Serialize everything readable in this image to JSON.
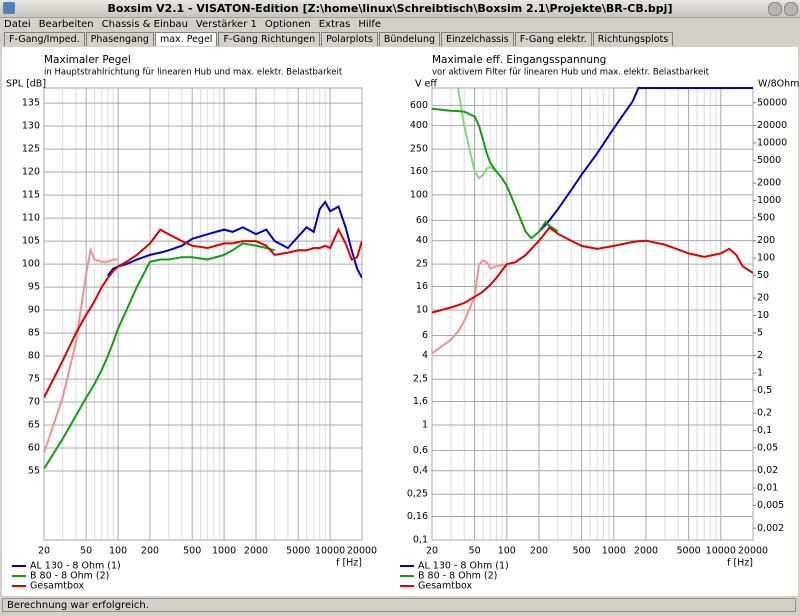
{
  "window": {
    "title": "Boxsim V2.1 - VISATON-Edition [Z:\\home\\linux\\Schreibtisch\\Boxsim 2.1\\Projekte\\BR-CB.bpj]"
  },
  "menu": [
    "Datei",
    "Bearbeiten",
    "Chassis & Einbau",
    "Verstärker 1",
    "Optionen",
    "Extras",
    "Hilfe"
  ],
  "tabs": [
    "F-Gang/Imped.",
    "Phasengang",
    "max. Pegel",
    "F-Gang Richtungen",
    "Polarplots",
    "Bündelung",
    "Einzelchassis",
    "F-Gang elektr.",
    "Richtungsplots"
  ],
  "active_tab": "max. Pegel",
  "status": "Berechnung war erfolgreich.",
  "chart_data": [
    {
      "type": "line",
      "title": "Maximaler Pegel",
      "subtitle": "in Hauptstrahlrichtung für linearen Hub und max. elektr. Belastbarkeit",
      "y_label": "SPL [dB]",
      "x_label": "f [Hz]",
      "xscale": "log",
      "xlim": [
        20,
        20000
      ],
      "xticks": [
        20,
        50,
        100,
        200,
        500,
        1000,
        2000,
        5000,
        10000,
        20000
      ],
      "x_minor_ticks": [
        30,
        40,
        60,
        70,
        80,
        90,
        300,
        400,
        600,
        700,
        800,
        900,
        3000,
        4000,
        6000,
        7000,
        8000,
        9000
      ],
      "ylim": [
        40,
        138.3
      ],
      "yticks": [
        55,
        60,
        65,
        70,
        75,
        80,
        85,
        90,
        95,
        100,
        105,
        110,
        115,
        120,
        125,
        130,
        135
      ],
      "grid": true,
      "legend": "bottom-left",
      "x": [
        20,
        30,
        40,
        50,
        55,
        60,
        70,
        80,
        90,
        100,
        120,
        150,
        200,
        250,
        300,
        400,
        500,
        700,
        1000,
        1200,
        1500,
        2000,
        2500,
        3000,
        4000,
        5000,
        6000,
        7000,
        8000,
        9000,
        10000,
        12000,
        14000,
        16000,
        18000,
        20000
      ],
      "series": [
        {
          "color": "#f09090",
          "values": [
            59,
            71,
            83,
            98,
            103,
            101,
            100.5,
            100.5,
            101,
            101,
            null,
            null,
            null,
            null,
            null,
            null,
            null,
            null,
            null,
            null,
            null,
            null,
            null,
            null,
            null,
            null,
            null,
            null,
            null,
            null,
            null,
            null,
            null,
            null,
            null,
            null
          ]
        },
        {
          "name": "AL 130 - 8 Ohm (1)",
          "color": "#0000c8",
          "values": [
            null,
            null,
            null,
            null,
            null,
            null,
            null,
            97.5,
            99,
            99.5,
            100,
            101,
            102,
            102.5,
            103,
            104,
            105.5,
            106.5,
            107.5,
            107,
            108,
            106.5,
            107.5,
            105,
            103.5,
            106,
            108,
            107,
            112,
            113.5,
            111.5,
            112.5,
            108,
            103,
            99,
            97
          ]
        },
        {
          "name": "B 80 - 8 Ohm (2)",
          "color": "#10a010",
          "values": [
            55.5,
            62,
            67,
            71,
            72.5,
            74,
            77,
            80,
            83,
            86,
            90,
            95,
            100.5,
            101,
            101,
            101.5,
            101.5,
            101,
            102,
            103,
            104.5,
            104,
            103.5,
            103,
            null,
            null,
            null,
            null,
            null,
            null,
            null,
            null,
            null,
            null,
            null,
            null
          ]
        },
        {
          "name": "Gesamtbox",
          "color": "#e00000",
          "values": [
            71,
            79,
            85,
            89,
            90.5,
            92,
            95,
            97,
            98.5,
            99.5,
            100.5,
            102,
            104.5,
            107.5,
            106.5,
            105,
            104,
            103.5,
            104.5,
            104.5,
            105,
            105,
            104,
            102,
            102.5,
            103,
            103,
            103.5,
            103.5,
            104,
            103.5,
            107.5,
            104.5,
            101,
            101.5,
            105
          ]
        }
      ]
    },
    {
      "type": "line",
      "title": "Maximale eff. Eingangsspannung",
      "subtitle": "vor aktivem Filter für linearen Hub und max. elektr. Belastbarkeit",
      "y_label": "V eff",
      "y2_label": "W/8Ohm",
      "x_label": "f [Hz]",
      "xscale": "log",
      "xlim": [
        20,
        20000
      ],
      "xticks": [
        20,
        50,
        100,
        200,
        500,
        1000,
        2000,
        5000,
        10000,
        20000
      ],
      "x_minor_ticks": [
        30,
        40,
        60,
        70,
        80,
        90,
        300,
        400,
        600,
        700,
        800,
        900,
        3000,
        4000,
        6000,
        7000,
        8000,
        9000
      ],
      "yscale": "log",
      "ylim": [
        0.1,
        850
      ],
      "yticks": [
        {
          "value": 0.1,
          "label": "0,1"
        },
        {
          "value": 0.16,
          "label": "0,16"
        },
        {
          "value": 0.25,
          "label": "0,25"
        },
        {
          "value": 0.4,
          "label": "0,4"
        },
        {
          "value": 0.6,
          "label": "0,6"
        },
        1,
        {
          "value": 1.6,
          "label": "1,6"
        },
        {
          "value": 2.5,
          "label": "2,5"
        },
        4,
        6,
        10,
        16,
        25,
        40,
        60,
        100,
        160,
        250,
        400,
        600
      ],
      "y2scale": "log",
      "y2lim": [
        0.00125,
        90312
      ],
      "y2ticks": [
        {
          "value": 0.002,
          "label": "0,002"
        },
        {
          "value": 0.005,
          "label": "0,005"
        },
        {
          "value": 0.01,
          "label": "0,01"
        },
        {
          "value": 0.02,
          "label": "0,02"
        },
        {
          "value": 0.05,
          "label": "0,05"
        },
        {
          "value": 0.1,
          "label": "0,1"
        },
        {
          "value": 0.2,
          "label": "0,2"
        },
        {
          "value": 0.5,
          "label": "0,5"
        },
        1,
        2,
        5,
        10,
        20,
        50,
        100,
        200,
        500,
        1000,
        2000,
        5000,
        10000,
        20000,
        50000
      ],
      "grid": true,
      "legend": "bottom-left",
      "x": [
        20,
        30,
        35,
        40,
        50,
        55,
        60,
        65,
        70,
        80,
        90,
        100,
        120,
        150,
        170,
        200,
        230,
        250,
        300,
        400,
        500,
        700,
        1000,
        1500,
        1700,
        2000,
        3000,
        5000,
        7000,
        10000,
        12000,
        14000,
        16000,
        20000
      ],
      "series": [
        {
          "color": "#f09090",
          "values": [
            4.2,
            5.5,
            6.5,
            8,
            13,
            25,
            27,
            26,
            23,
            24,
            24.5,
            25,
            null,
            null,
            null,
            null,
            null,
            null,
            null,
            null,
            null,
            null,
            null,
            null,
            null,
            null,
            null,
            null,
            null,
            null,
            null,
            null,
            null,
            null
          ]
        },
        {
          "color": "#80d880",
          "values": [
            null,
            null,
            850,
            400,
            160,
            140,
            150,
            170,
            175,
            160,
            null,
            null,
            null,
            null,
            null,
            null,
            null,
            null,
            null,
            null,
            null,
            null,
            null,
            null,
            null,
            null,
            null,
            null,
            null,
            null,
            null,
            null,
            null,
            null
          ]
        },
        {
          "name": "AL 130 - 8 Ohm (1)",
          "color": "#0000c8",
          "values": [
            null,
            null,
            null,
            null,
            null,
            null,
            null,
            null,
            null,
            null,
            null,
            null,
            null,
            null,
            null,
            48,
            55,
            60,
            75,
            110,
            150,
            230,
            380,
            650,
            850,
            850,
            850,
            850,
            850,
            850,
            850,
            850,
            850,
            850
          ]
        },
        {
          "name": "B 80 - 8 Ohm (2)",
          "color": "#10a010",
          "values": [
            560,
            540,
            535,
            530,
            480,
            400,
            300,
            230,
            190,
            160,
            140,
            120,
            80,
            48,
            42,
            48,
            58,
            54,
            48,
            null,
            null,
            null,
            null,
            null,
            null,
            null,
            null,
            null,
            null,
            null,
            null,
            null,
            null,
            null
          ]
        },
        {
          "name": "Gesamtbox",
          "color": "#e00000",
          "values": [
            9.5,
            10.5,
            11,
            11.5,
            13,
            13.7,
            14.5,
            15.5,
            16.5,
            19,
            22,
            25,
            26,
            30,
            34,
            40,
            47,
            52,
            46,
            40,
            36,
            34,
            36,
            39,
            39.5,
            40,
            37,
            31,
            29,
            31,
            34,
            30,
            24,
            21
          ]
        }
      ]
    }
  ]
}
